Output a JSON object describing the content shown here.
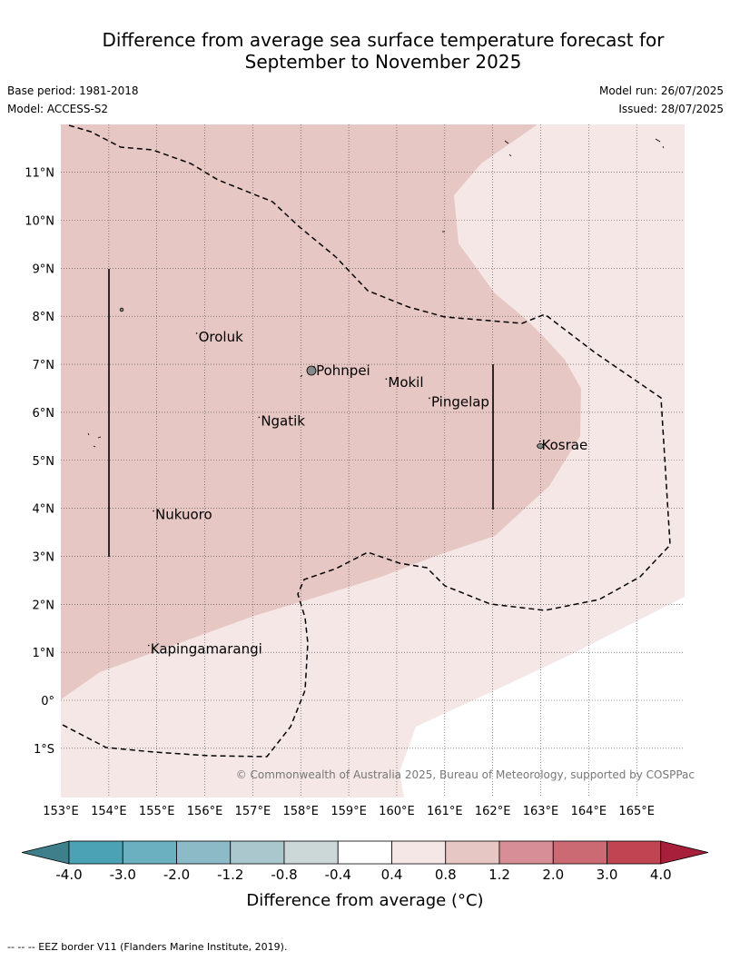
{
  "title_line1": "Difference from average sea surface temperature forecast for",
  "title_line2": "September to November 2025",
  "base_period": "Base period: 1981-2018",
  "model": "Model: ACCESS-S2",
  "model_run": "Model run: 26/07/2025",
  "issued": "Issued: 28/07/2025",
  "copyright": "© Commonwealth of Australia 2025, Bureau of Meteorology, supported by COSPPac",
  "lat_labels": [
    "11°N",
    "10°N",
    "9°N",
    "8°N",
    "7°N",
    "6°N",
    "5°N",
    "4°N",
    "3°N",
    "2°N",
    "1°N",
    "0°",
    "1°S"
  ],
  "lon_labels": [
    "153°E",
    "154°E",
    "155°E",
    "156°E",
    "157°E",
    "158°E",
    "159°E",
    "160°E",
    "161°E",
    "162°E",
    "163°E",
    "164°E",
    "165°E"
  ],
  "places": [
    {
      "name": "Oroluk",
      "lon": 155.85,
      "lat": 7.55
    },
    {
      "name": "Pohnpei",
      "lon": 158.3,
      "lat": 6.85
    },
    {
      "name": "Mokil",
      "lon": 159.8,
      "lat": 6.6
    },
    {
      "name": "Pingelap",
      "lon": 160.7,
      "lat": 6.2
    },
    {
      "name": "Ngatik",
      "lon": 157.15,
      "lat": 5.8
    },
    {
      "name": "Kosrae",
      "lon": 163.0,
      "lat": 5.3
    },
    {
      "name": "Nukuoro",
      "lon": 154.95,
      "lat": 3.85
    },
    {
      "name": "Kapingamarangi",
      "lon": 154.85,
      "lat": 1.05
    }
  ],
  "legend": {
    "title": "Difference from average (°C)",
    "ticks": [
      "-4.0",
      "-3.0",
      "-2.0",
      "-1.2",
      "-0.8",
      "-0.4",
      "0.4",
      "0.8",
      "1.2",
      "2.0",
      "3.0",
      "4.0"
    ],
    "colors": [
      "#3f7f8c",
      "#4aa2b4",
      "#6bb0c0",
      "#8cbac7",
      "#a9c7cc",
      "#ccd7d8",
      "#ffffff",
      "#f4e7e6",
      "#e7c7c3",
      "#d88e96",
      "#cc6a74",
      "#c04451",
      "#a81f3c"
    ]
  },
  "footer": "--  --  -- EEZ border V11 (Flanders Marine Institute, 2019).",
  "colors": {
    "band_04_08": "#f4e7e6",
    "band_08_12": "#e7c7c3",
    "grid": "#555555"
  }
}
